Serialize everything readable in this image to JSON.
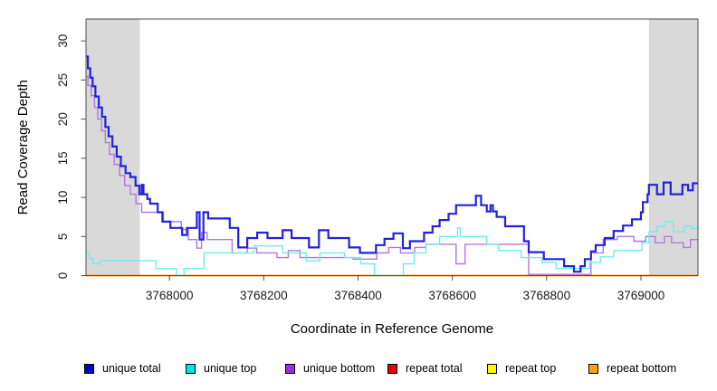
{
  "chart_data": {
    "type": "line",
    "subtype": "step-coverage",
    "title": "",
    "xlabel": "Coordinate in Reference Genome",
    "ylabel": "Read Coverage Depth",
    "xlim": [
      3767823,
      3769121
    ],
    "ylim": [
      0,
      32.8
    ],
    "x_ticks": [
      3768000,
      3768200,
      3768400,
      3768600,
      3768800,
      3769000
    ],
    "y_ticks": [
      0,
      5,
      10,
      15,
      20,
      25,
      30
    ],
    "grid": false,
    "legend_position": "bottom",
    "box_color": "#4d4d4d",
    "shaded_regions": [
      {
        "name": "left-flank",
        "x0": 3767823,
        "x1": 3767937,
        "color": "#d9d9d9"
      },
      {
        "name": "right-flank",
        "x0": 3769017,
        "x1": 3769121,
        "color": "#d9d9d9"
      }
    ],
    "draw_order": [
      3,
      4,
      5,
      2,
      1,
      0
    ],
    "series": [
      {
        "name": "unique total",
        "color": "#2222dd",
        "line_width": 2.2,
        "step": true,
        "points": [
          [
            3767823,
            28
          ],
          [
            3767827,
            26.5
          ],
          [
            3767832,
            25.3
          ],
          [
            3767837,
            24.2
          ],
          [
            3767843,
            22.9
          ],
          [
            3767850,
            21.5
          ],
          [
            3767857,
            20.3
          ],
          [
            3767864,
            19
          ],
          [
            3767871,
            17.8
          ],
          [
            3767879,
            16.5
          ],
          [
            3767888,
            15.2
          ],
          [
            3767897,
            14
          ],
          [
            3767907,
            13.1
          ],
          [
            3767917,
            12.6
          ],
          [
            3767928,
            11.5
          ],
          [
            3767936,
            10.4
          ],
          [
            3767941,
            11.6
          ],
          [
            3767945,
            10.4
          ],
          [
            3767953,
            9.8
          ],
          [
            3767959,
            9.2
          ],
          [
            3767975,
            8.1
          ],
          [
            3767985,
            6.9
          ],
          [
            3768002,
            6.1
          ],
          [
            3768027,
            5.2
          ],
          [
            3768037,
            6.1
          ],
          [
            3768058,
            8.1
          ],
          [
            3768064,
            4.6
          ],
          [
            3768072,
            8.1
          ],
          [
            3768082,
            7.3
          ],
          [
            3768128,
            6.1
          ],
          [
            3768146,
            3.6
          ],
          [
            3768165,
            4.8
          ],
          [
            3768186,
            5.5
          ],
          [
            3768208,
            4.8
          ],
          [
            3768240,
            5.8
          ],
          [
            3768259,
            4.8
          ],
          [
            3768296,
            3.6
          ],
          [
            3768317,
            5.8
          ],
          [
            3768337,
            4.8
          ],
          [
            3768381,
            3.6
          ],
          [
            3768404,
            2.9
          ],
          [
            3768438,
            3.9
          ],
          [
            3768456,
            4.7
          ],
          [
            3768475,
            5.4
          ],
          [
            3768495,
            3.5
          ],
          [
            3768510,
            4.4
          ],
          [
            3768540,
            5.5
          ],
          [
            3768558,
            6.3
          ],
          [
            3768573,
            7.1
          ],
          [
            3768592,
            7.9
          ],
          [
            3768608,
            9.0
          ],
          [
            3768650,
            10.2
          ],
          [
            3768661,
            9.0
          ],
          [
            3768673,
            8.2
          ],
          [
            3768681,
            9.0
          ],
          [
            3768686,
            8.2
          ],
          [
            3768694,
            7.5
          ],
          [
            3768712,
            6.3
          ],
          [
            3768752,
            4.4
          ],
          [
            3768762,
            3.0
          ],
          [
            3768794,
            2.1
          ],
          [
            3768837,
            1.2
          ],
          [
            3768858,
            0.5
          ],
          [
            3768872,
            1.2
          ],
          [
            3768881,
            2.1
          ],
          [
            3768894,
            3.1
          ],
          [
            3768904,
            3.9
          ],
          [
            3768923,
            4.8
          ],
          [
            3768942,
            5.7
          ],
          [
            3768962,
            6.4
          ],
          [
            3768981,
            7.2
          ],
          [
            3769000,
            8.1
          ],
          [
            3769004,
            9.4
          ],
          [
            3769014,
            10.4
          ],
          [
            3769017,
            11.6
          ],
          [
            3769034,
            10.4
          ],
          [
            3769048,
            11.9
          ],
          [
            3769063,
            10.4
          ],
          [
            3769088,
            11.6
          ],
          [
            3769100,
            10.9
          ],
          [
            3769110,
            11.8
          ]
        ]
      },
      {
        "name": "unique top",
        "color": "#6ceeee",
        "line_width": 1.4,
        "step": true,
        "points": [
          [
            3767823,
            3.0
          ],
          [
            3767830,
            2.2
          ],
          [
            3767838,
            1.5
          ],
          [
            3767852,
            1.9
          ],
          [
            3767971,
            0.9
          ],
          [
            3768015,
            0
          ],
          [
            3768031,
            0.9
          ],
          [
            3768073,
            2.9
          ],
          [
            3768179,
            3.8
          ],
          [
            3768240,
            2.9
          ],
          [
            3768290,
            1.9
          ],
          [
            3768319,
            2.9
          ],
          [
            3768371,
            2.3
          ],
          [
            3768406,
            1.5
          ],
          [
            3768435,
            0
          ],
          [
            3768496,
            1.5
          ],
          [
            3768519,
            2.9
          ],
          [
            3768544,
            4.0
          ],
          [
            3768573,
            5.0
          ],
          [
            3768611,
            6.1
          ],
          [
            3768617,
            5.0
          ],
          [
            3768673,
            4.0
          ],
          [
            3768698,
            3.2
          ],
          [
            3768746,
            2.3
          ],
          [
            3768790,
            1.7
          ],
          [
            3768820,
            0.9
          ],
          [
            3768891,
            1.7
          ],
          [
            3768914,
            2.4
          ],
          [
            3768942,
            3.2
          ],
          [
            3769002,
            4.2
          ],
          [
            3769017,
            5.6
          ],
          [
            3769034,
            6.3
          ],
          [
            3769050,
            6.9
          ],
          [
            3769069,
            5.6
          ],
          [
            3769092,
            6.3
          ],
          [
            3769108,
            6.0
          ]
        ]
      },
      {
        "name": "unique bottom",
        "color": "#b475e0",
        "line_width": 1.4,
        "step": true,
        "points": [
          [
            3767823,
            25.5
          ],
          [
            3767827,
            24.3
          ],
          [
            3767834,
            23
          ],
          [
            3767841,
            21.5
          ],
          [
            3767848,
            20
          ],
          [
            3767856,
            18.5
          ],
          [
            3767864,
            17
          ],
          [
            3767873,
            15.5
          ],
          [
            3767883,
            14.2
          ],
          [
            3767894,
            12.8
          ],
          [
            3767905,
            11.5
          ],
          [
            3767917,
            10.4
          ],
          [
            3767929,
            9.2
          ],
          [
            3767941,
            8.1
          ],
          [
            3767987,
            6.9
          ],
          [
            3768025,
            5.9
          ],
          [
            3768040,
            4.6
          ],
          [
            3768058,
            3.5
          ],
          [
            3768068,
            5.5
          ],
          [
            3768080,
            4.6
          ],
          [
            3768133,
            2.9
          ],
          [
            3768165,
            3.5
          ],
          [
            3768185,
            2.9
          ],
          [
            3768228,
            2.3
          ],
          [
            3768252,
            3.2
          ],
          [
            3768277,
            2.3
          ],
          [
            3768390,
            2.1
          ],
          [
            3768440,
            2.9
          ],
          [
            3768465,
            3.6
          ],
          [
            3768490,
            2.9
          ],
          [
            3768520,
            3.6
          ],
          [
            3768544,
            4.0
          ],
          [
            3768608,
            1.5
          ],
          [
            3768627,
            4.0
          ],
          [
            3768762,
            0.15
          ],
          [
            3768894,
            2.9
          ],
          [
            3768920,
            4.6
          ],
          [
            3768950,
            5.0
          ],
          [
            3768985,
            4.4
          ],
          [
            3769010,
            5.0
          ],
          [
            3769030,
            4.2
          ],
          [
            3769050,
            5.0
          ],
          [
            3769065,
            4.2
          ],
          [
            3769090,
            3.6
          ],
          [
            3769105,
            4.6
          ]
        ]
      },
      {
        "name": "repeat total",
        "color": "#e60000",
        "line_width": 1.4,
        "step": true,
        "points": [
          [
            3767823,
            0
          ]
        ]
      },
      {
        "name": "repeat top",
        "color": "#f2f200",
        "line_width": 1.4,
        "step": true,
        "points": [
          [
            3767823,
            0
          ]
        ]
      },
      {
        "name": "repeat bottom",
        "color": "#ff9a1e",
        "line_width": 1.6,
        "step": true,
        "points": [
          [
            3767823,
            0
          ]
        ]
      }
    ]
  },
  "legend": {
    "items": [
      {
        "label": "unique total",
        "swatch_color": "#0000cc"
      },
      {
        "label": "unique top",
        "swatch_color": "#00e6e6"
      },
      {
        "label": "unique bottom",
        "swatch_color": "#9b2fd9"
      },
      {
        "label": "repeat total",
        "swatch_color": "#e60000"
      },
      {
        "label": "repeat top",
        "swatch_color": "#fcfc00"
      },
      {
        "label": "repeat bottom",
        "swatch_color": "#ffa01e"
      }
    ]
  }
}
